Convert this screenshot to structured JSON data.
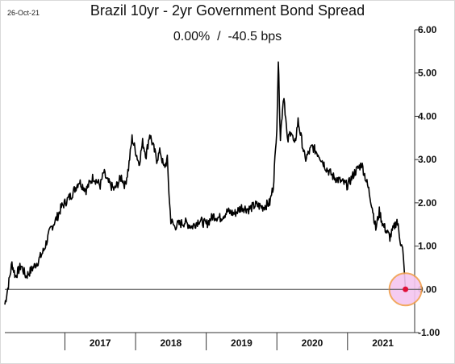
{
  "header": {
    "date": "26-Oct-21",
    "title": "Brazil 10yr - 2yr Government Bond Spread",
    "subtitle": "0.00%  /  -40.5 bps"
  },
  "colors": {
    "line": "#000000",
    "zero_line": "#555555",
    "highlight_fill": "#f5c6f0",
    "highlight_stroke": "#f0a050",
    "marker": "#e0103a"
  },
  "chart_data": {
    "type": "line",
    "title": "Brazil 10yr - 2yr Government Bond Spread",
    "subtitle": "0.00%  /  -40.5 bps",
    "xlabel": "",
    "ylabel": "",
    "ylim": [
      -1.0,
      6.0
    ],
    "yticks": [
      "6.00",
      "5.00",
      "4.00",
      "3.00",
      "2.00",
      "1.00",
      "0.00",
      "-1.00"
    ],
    "ytick_values": [
      6,
      5,
      4,
      3,
      2,
      1,
      0,
      -1
    ],
    "xticks": [
      "2017",
      "2018",
      "2019",
      "2020",
      "2021"
    ],
    "xlim": [
      2016.15,
      2021.95
    ],
    "grid": false,
    "y_axis_position": "right",
    "reference_line": 0,
    "last_point": {
      "x": 2021.82,
      "y": 0.0
    },
    "series": [
      {
        "x": [
          2016.15,
          2016.2,
          2016.25,
          2016.3,
          2016.38,
          2016.45,
          2016.55,
          2016.62,
          2016.7,
          2016.8,
          2016.9,
          2016.95,
          2017.0,
          2017.1,
          2017.2,
          2017.3,
          2017.4,
          2017.5,
          2017.55,
          2017.6,
          2017.7,
          2017.8,
          2017.85,
          2017.9,
          2017.95,
          2018.0,
          2018.05,
          2018.1,
          2018.15,
          2018.2,
          2018.3,
          2018.35,
          2018.4,
          2018.45,
          2018.48,
          2018.5,
          2018.55,
          2018.6,
          2018.7,
          2018.8,
          2018.9,
          2019.0,
          2019.1,
          2019.2,
          2019.3,
          2019.4,
          2019.5,
          2019.6,
          2019.7,
          2019.8,
          2019.9,
          2019.95,
          2019.98,
          2020.0,
          2020.02,
          2020.05,
          2020.08,
          2020.1,
          2020.15,
          2020.2,
          2020.25,
          2020.3,
          2020.4,
          2020.5,
          2020.6,
          2020.7,
          2020.8,
          2020.9,
          2021.0,
          2021.1,
          2021.2,
          2021.25,
          2021.3,
          2021.35,
          2021.4,
          2021.45,
          2021.5,
          2021.6,
          2021.7,
          2021.75,
          2021.78,
          2021.8,
          2021.82
        ],
        "y": [
          -0.35,
          0.1,
          0.6,
          0.3,
          0.55,
          0.3,
          0.5,
          0.65,
          0.9,
          1.4,
          1.7,
          1.9,
          2.0,
          2.2,
          2.5,
          2.3,
          2.6,
          2.4,
          2.7,
          2.5,
          2.3,
          2.6,
          2.4,
          2.8,
          3.5,
          3.2,
          2.9,
          3.4,
          3.1,
          3.6,
          3.0,
          3.2,
          2.8,
          3.0,
          2.0,
          1.6,
          1.45,
          1.5,
          1.55,
          1.45,
          1.6,
          1.5,
          1.7,
          1.65,
          1.8,
          1.75,
          1.9,
          1.85,
          1.95,
          1.9,
          2.0,
          2.4,
          3.2,
          3.8,
          5.3,
          3.5,
          4.2,
          4.5,
          3.4,
          3.7,
          3.3,
          3.9,
          3.0,
          3.3,
          3.1,
          2.8,
          2.6,
          2.5,
          2.4,
          2.7,
          2.9,
          2.6,
          2.3,
          1.9,
          1.4,
          1.8,
          1.5,
          1.2,
          1.6,
          1.1,
          0.9,
          0.5,
          0.0
        ]
      }
    ]
  }
}
